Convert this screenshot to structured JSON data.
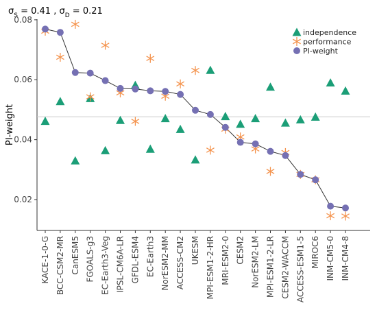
{
  "chart_data": {
    "type": "scatter",
    "title_parts": {
      "s_label": "σS = 0.41",
      "separator": " , ",
      "d_label": "σD = 0.21"
    },
    "xlabel": "",
    "ylabel": "PI-weight",
    "ylim": [
      0.0097,
      0.0802
    ],
    "yticks": [
      0.02,
      0.04,
      0.06,
      0.08
    ],
    "ytick_labels": [
      "0.02",
      "0.04",
      "0.06",
      "0.08"
    ],
    "reference_line": 0.0476,
    "grid": false,
    "legend_position": "top-right",
    "categories": [
      "KACE-1-0-G",
      "BCC-CSM2-MR",
      "CanESM5",
      "FGOALS-g3",
      "EC-Earth3-Veg",
      "IPSL-CM6A-LR",
      "GFDL-ESM4",
      "EC-Earth3",
      "NorESM2-MM",
      "ACCESS-CM2",
      "UKESM",
      "MPI-ESM1-2-HR",
      "MRI-ESM2-0",
      "CESM2",
      "NorESM2-LM",
      "MPI-ESM1-2-LR",
      "CESM2-WACCM",
      "ACCESS-ESM1-5",
      "MIROC6",
      "INM-CM5-0",
      "INM-CM4-8"
    ],
    "series": [
      {
        "name": "independence",
        "marker": "triangle",
        "color": "#1b9e77",
        "values": [
          0.0462,
          0.0528,
          0.033,
          0.0538,
          0.0364,
          0.0465,
          0.0582,
          0.0369,
          0.0471,
          0.0435,
          0.0333,
          0.0632,
          0.0478,
          0.0452,
          0.0471,
          0.0576,
          0.0456,
          0.0467,
          0.0476,
          0.059,
          0.0563
        ]
      },
      {
        "name": "performance",
        "marker": "asterisk",
        "color": "#f4934d",
        "values": [
          0.0762,
          0.0675,
          0.0785,
          0.0543,
          0.0715,
          0.0556,
          0.0461,
          0.0671,
          0.0545,
          0.0586,
          0.0631,
          0.0365,
          0.0435,
          0.0409,
          0.0369,
          0.0294,
          0.0357,
          0.0284,
          0.0266,
          0.0146,
          0.0145
        ]
      },
      {
        "name": "PI-weight",
        "marker": "circle",
        "color": "#7570b3",
        "values": [
          0.0769,
          0.0758,
          0.0624,
          0.0622,
          0.0597,
          0.0571,
          0.0569,
          0.0563,
          0.0561,
          0.0551,
          0.0498,
          0.0484,
          0.0441,
          0.0391,
          0.0386,
          0.0361,
          0.0347,
          0.0284,
          0.0266,
          0.0178,
          0.0172
        ]
      }
    ]
  }
}
